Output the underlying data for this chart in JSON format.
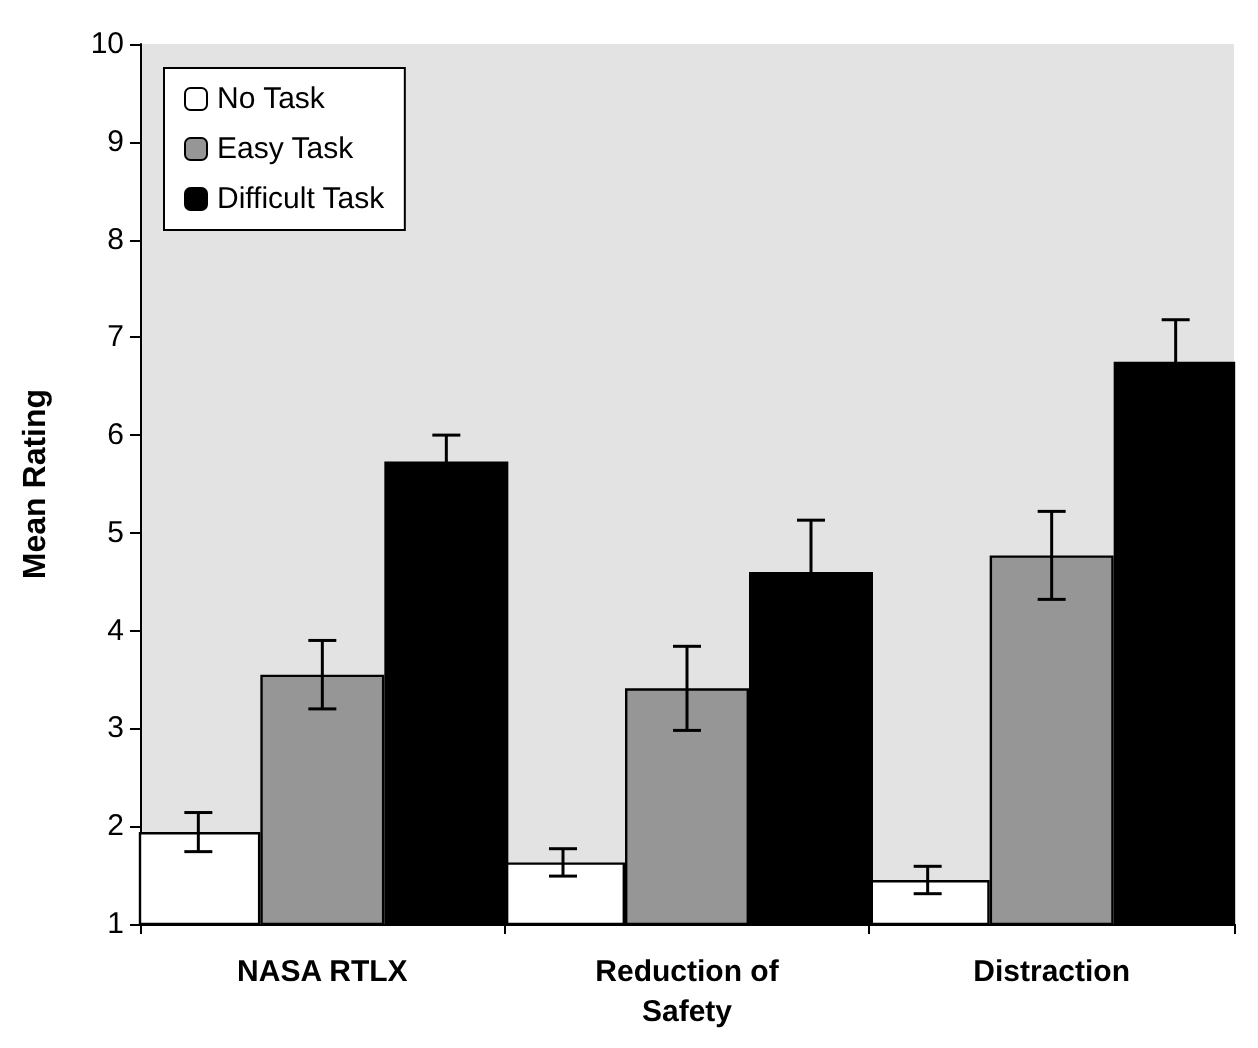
{
  "chart_data": {
    "type": "bar",
    "ylabel": "Mean Rating",
    "categories": [
      "NASA RTLX",
      "Reduction of\nSafety",
      "Distraction"
    ],
    "series": [
      {
        "name": "No Task",
        "color": "#ffffff",
        "values": [
          1.94,
          1.63,
          1.45
        ],
        "errors": [
          0.2,
          0.14,
          0.14
        ]
      },
      {
        "name": "Easy Task",
        "color": "#969696",
        "values": [
          3.55,
          3.41,
          4.77
        ],
        "errors": [
          0.35,
          0.43,
          0.45
        ]
      },
      {
        "name": "Difficult Task",
        "color": "#000000",
        "values": [
          5.73,
          4.6,
          6.75
        ],
        "errors": [
          0.27,
          0.53,
          0.43
        ]
      }
    ],
    "ylim": [
      1,
      10
    ],
    "yticks": [
      1,
      2,
      3,
      4,
      5,
      6,
      7,
      8,
      9,
      10
    ],
    "grid": false,
    "legend": "top left"
  }
}
